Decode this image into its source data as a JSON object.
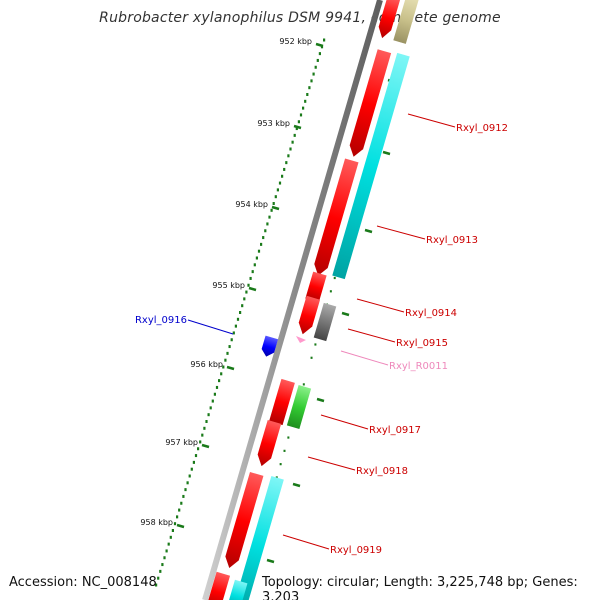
{
  "title": "Rubrobacter xylanophilus DSM 9941, complete genome",
  "footer": {
    "accession": "Accession: NC_008148",
    "summary": "Topology: circular; Length: 3,225,748 bp; Genes: 3,203"
  },
  "colors": {
    "backbone": "#8c8c8c",
    "tick": "#1a7a1a",
    "gene_forward": "#ff0000",
    "gene_cds_reverse": "#00e0e0",
    "gene_rrna": "#ff99cc",
    "gene_other": "#0000ff",
    "gene_green": "#33cc33",
    "gene_gray": "#777777",
    "gene_khaki": "#c8c08a",
    "label_default": "#cc0000",
    "label_blue": "#0000cc",
    "label_pink": "#ee88bb"
  },
  "ticks": [
    {
      "label": "952 kbp"
    },
    {
      "label": "953 kbp"
    },
    {
      "label": "954 kbp"
    },
    {
      "label": "955 kbp"
    },
    {
      "label": "956 kbp"
    },
    {
      "label": "957 kbp"
    },
    {
      "label": "958 kbp"
    }
  ],
  "genes": [
    {
      "label": "Rxyl_0912",
      "label_color": "#cc0000"
    },
    {
      "label": "Rxyl_0913",
      "label_color": "#cc0000"
    },
    {
      "label": "Rxyl_0914",
      "label_color": "#cc0000"
    },
    {
      "label": "Rxyl_0915",
      "label_color": "#cc0000"
    },
    {
      "label": "Rxyl_0916",
      "label_color": "#0000cc"
    },
    {
      "label": "Rxyl_R0011",
      "label_color": "#ee88bb"
    },
    {
      "label": "Rxyl_0917",
      "label_color": "#cc0000"
    },
    {
      "label": "Rxyl_0918",
      "label_color": "#cc0000"
    },
    {
      "label": "Rxyl_0919",
      "label_color": "#cc0000"
    }
  ]
}
